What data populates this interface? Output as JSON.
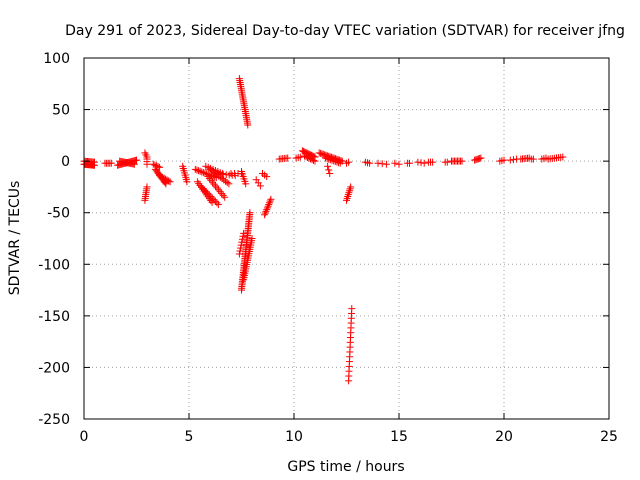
{
  "chart_data": {
    "type": "scatter",
    "title": "Day 291 of 2023, Sidereal Day-to-day VTEC variation (SDTVAR) for receiver jfng",
    "xlabel": "GPS time / hours",
    "ylabel": "SDTVAR / TECUs",
    "xlim": [
      0,
      25
    ],
    "ylim": [
      -250,
      100
    ],
    "xticks": [
      0,
      5,
      10,
      15,
      20,
      25
    ],
    "yticks": [
      -250,
      -200,
      -150,
      -100,
      -50,
      0,
      50,
      100
    ],
    "grid": true,
    "marker": "plus",
    "color": "#ff0000",
    "segments": [
      {
        "x0": 0.0,
        "y0": -3,
        "x1": 0.5,
        "y1": -4,
        "n": 14
      },
      {
        "x0": 0.0,
        "y0": 0,
        "x1": 0.5,
        "y1": -1,
        "n": 10
      },
      {
        "x0": 1.0,
        "y0": -2,
        "x1": 1.3,
        "y1": -2,
        "n": 5
      },
      {
        "x0": 1.6,
        "y0": -4,
        "x1": 2.5,
        "y1": 1,
        "n": 18
      },
      {
        "x0": 1.7,
        "y0": 0,
        "x1": 2.4,
        "y1": -3,
        "n": 14
      },
      {
        "x0": 2.9,
        "y0": 8,
        "x1": 3.0,
        "y1": 4,
        "n": 3
      },
      {
        "x0": 3.0,
        "y0": -3,
        "x1": 3.0,
        "y1": 2,
        "n": 3
      },
      {
        "x0": 2.9,
        "y0": -38,
        "x1": 3.0,
        "y1": -25,
        "n": 8
      },
      {
        "x0": 3.3,
        "y0": -3,
        "x1": 3.6,
        "y1": -6,
        "n": 5
      },
      {
        "x0": 3.4,
        "y0": -8,
        "x1": 3.9,
        "y1": -22,
        "n": 12
      },
      {
        "x0": 3.6,
        "y0": -14,
        "x1": 4.1,
        "y1": -20,
        "n": 8
      },
      {
        "x0": 4.7,
        "y0": -5,
        "x1": 4.9,
        "y1": -20,
        "n": 8
      },
      {
        "x0": 5.3,
        "y0": -8,
        "x1": 6.3,
        "y1": -16,
        "n": 14
      },
      {
        "x0": 5.4,
        "y0": -20,
        "x1": 6.1,
        "y1": -40,
        "n": 12
      },
      {
        "x0": 5.6,
        "y0": -25,
        "x1": 6.4,
        "y1": -42,
        "n": 12
      },
      {
        "x0": 5.9,
        "y0": -15,
        "x1": 6.7,
        "y1": -35,
        "n": 12
      },
      {
        "x0": 6.0,
        "y0": -8,
        "x1": 6.9,
        "y1": -22,
        "n": 12
      },
      {
        "x0": 5.8,
        "y0": -5,
        "x1": 6.6,
        "y1": -12,
        "n": 8
      },
      {
        "x0": 6.2,
        "y0": -12,
        "x1": 7.2,
        "y1": -14,
        "n": 8
      },
      {
        "x0": 7.0,
        "y0": -12,
        "x1": 7.5,
        "y1": -12,
        "n": 4
      },
      {
        "x0": 7.4,
        "y0": 80,
        "x1": 7.8,
        "y1": 35,
        "n": 25
      },
      {
        "x0": 7.5,
        "y0": -10,
        "x1": 7.7,
        "y1": -22,
        "n": 6
      },
      {
        "x0": 7.5,
        "y0": -125,
        "x1": 7.9,
        "y1": -50,
        "n": 45
      },
      {
        "x0": 7.6,
        "y0": -115,
        "x1": 8.0,
        "y1": -75,
        "n": 20
      },
      {
        "x0": 7.4,
        "y0": -90,
        "x1": 7.6,
        "y1": -70,
        "n": 8
      },
      {
        "x0": 8.2,
        "y0": -18,
        "x1": 8.4,
        "y1": -24,
        "n": 3
      },
      {
        "x0": 8.5,
        "y0": -12,
        "x1": 8.7,
        "y1": -15,
        "n": 3
      },
      {
        "x0": 8.6,
        "y0": -52,
        "x1": 8.9,
        "y1": -37,
        "n": 10
      },
      {
        "x0": 9.3,
        "y0": 2,
        "x1": 9.7,
        "y1": 3,
        "n": 6
      },
      {
        "x0": 10.1,
        "y0": 3,
        "x1": 10.3,
        "y1": 4,
        "n": 3
      },
      {
        "x0": 10.4,
        "y0": 10,
        "x1": 11.0,
        "y1": 4,
        "n": 12
      },
      {
        "x0": 10.5,
        "y0": 5,
        "x1": 11.0,
        "y1": 0,
        "n": 8
      },
      {
        "x0": 11.2,
        "y0": 8,
        "x1": 12.3,
        "y1": 0,
        "n": 18
      },
      {
        "x0": 11.5,
        "y0": 3,
        "x1": 12.2,
        "y1": -2,
        "n": 10
      },
      {
        "x0": 11.6,
        "y0": -5,
        "x1": 11.7,
        "y1": -12,
        "n": 3
      },
      {
        "x0": 12.5,
        "y0": -38,
        "x1": 12.7,
        "y1": -25,
        "n": 8
      },
      {
        "x0": 12.5,
        "y0": -2,
        "x1": 12.6,
        "y1": -1,
        "n": 2
      },
      {
        "x0": 12.6,
        "y0": -213,
        "x1": 12.75,
        "y1": -143,
        "n": 16
      },
      {
        "x0": 13.4,
        "y0": -1,
        "x1": 13.6,
        "y1": -2,
        "n": 3
      },
      {
        "x0": 14.0,
        "y0": -2,
        "x1": 14.4,
        "y1": -3,
        "n": 3
      },
      {
        "x0": 14.8,
        "y0": -2,
        "x1": 15.0,
        "y1": -3,
        "n": 2
      },
      {
        "x0": 15.4,
        "y0": -2,
        "x1": 15.5,
        "y1": -2,
        "n": 2
      },
      {
        "x0": 15.9,
        "y0": -1,
        "x1": 16.2,
        "y1": -2,
        "n": 3
      },
      {
        "x0": 16.4,
        "y0": -1,
        "x1": 16.6,
        "y1": -1,
        "n": 3
      },
      {
        "x0": 17.2,
        "y0": -1,
        "x1": 17.3,
        "y1": -1,
        "n": 2
      },
      {
        "x0": 17.5,
        "y0": 0,
        "x1": 18.0,
        "y1": 0,
        "n": 8
      },
      {
        "x0": 18.6,
        "y0": 1,
        "x1": 18.9,
        "y1": 3,
        "n": 6
      },
      {
        "x0": 19.8,
        "y0": 0,
        "x1": 20.0,
        "y1": 1,
        "n": 3
      },
      {
        "x0": 20.3,
        "y0": 1,
        "x1": 20.6,
        "y1": 2,
        "n": 3
      },
      {
        "x0": 20.8,
        "y0": 2,
        "x1": 21.2,
        "y1": 3,
        "n": 6
      },
      {
        "x0": 21.3,
        "y0": 2,
        "x1": 21.4,
        "y1": 2,
        "n": 2
      },
      {
        "x0": 21.8,
        "y0": 2,
        "x1": 22.0,
        "y1": 3,
        "n": 3
      },
      {
        "x0": 22.1,
        "y0": 2,
        "x1": 22.8,
        "y1": 4,
        "n": 8
      }
    ]
  }
}
